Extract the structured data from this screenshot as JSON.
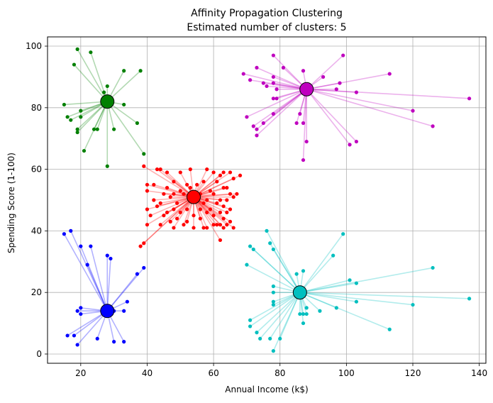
{
  "chart_data": {
    "type": "scatter",
    "title": "Affinity Propagation Clustering",
    "subtitle": "Estimated number of clusters: 5",
    "xlabel": "Annual Income (k$)",
    "ylabel": "Spending Score (1-100)",
    "xlim": [
      10,
      142
    ],
    "ylim": [
      -3,
      103
    ],
    "xticks": [
      20,
      40,
      60,
      80,
      100,
      120,
      140
    ],
    "yticks": [
      0,
      20,
      40,
      60,
      80,
      100
    ],
    "grid": true,
    "clusters": [
      {
        "name": "cluster-1",
        "color": "#008000",
        "center": [
          28,
          82
        ],
        "points": [
          [
            19,
            99
          ],
          [
            23,
            98
          ],
          [
            18,
            94
          ],
          [
            33,
            92
          ],
          [
            38,
            92
          ],
          [
            28,
            87
          ],
          [
            27,
            85
          ],
          [
            15,
            81
          ],
          [
            20,
            79
          ],
          [
            33,
            81
          ],
          [
            16,
            77
          ],
          [
            17,
            76
          ],
          [
            20,
            77
          ],
          [
            19,
            73
          ],
          [
            24,
            73
          ],
          [
            25,
            73
          ],
          [
            30,
            73
          ],
          [
            37,
            75
          ],
          [
            19,
            72
          ],
          [
            39,
            65
          ],
          [
            21,
            66
          ],
          [
            28,
            61
          ]
        ]
      },
      {
        "name": "cluster-2",
        "color": "#bf00bf",
        "center": [
          88,
          86
        ],
        "points": [
          [
            78,
            97
          ],
          [
            99,
            97
          ],
          [
            73,
            93
          ],
          [
            81,
            93
          ],
          [
            87,
            92
          ],
          [
            69,
            91
          ],
          [
            93,
            90
          ],
          [
            113,
            91
          ],
          [
            78,
            90
          ],
          [
            71,
            89
          ],
          [
            75,
            88
          ],
          [
            76,
            87
          ],
          [
            78,
            88
          ],
          [
            98,
            88
          ],
          [
            79,
            86
          ],
          [
            97,
            86
          ],
          [
            103,
            85
          ],
          [
            78,
            83
          ],
          [
            79,
            83
          ],
          [
            137,
            83
          ],
          [
            70,
            77
          ],
          [
            75,
            75
          ],
          [
            78,
            78
          ],
          [
            86,
            78
          ],
          [
            120,
            79
          ],
          [
            72,
            74
          ],
          [
            73,
            73
          ],
          [
            85,
            75
          ],
          [
            87,
            75
          ],
          [
            126,
            74
          ],
          [
            73,
            71
          ],
          [
            88,
            69
          ],
          [
            103,
            69
          ],
          [
            101,
            68
          ],
          [
            87,
            63
          ]
        ]
      },
      {
        "name": "cluster-3",
        "color": "#ff0000",
        "center": [
          54,
          51
        ],
        "points": [
          [
            39,
            61
          ],
          [
            43,
            60
          ],
          [
            44,
            60
          ],
          [
            46,
            59
          ],
          [
            50,
            59
          ],
          [
            53,
            60
          ],
          [
            58,
            60
          ],
          [
            60,
            59
          ],
          [
            63,
            59
          ],
          [
            65,
            59
          ],
          [
            62,
            58
          ],
          [
            68,
            58
          ],
          [
            40,
            55
          ],
          [
            42,
            55
          ],
          [
            48,
            56
          ],
          [
            52,
            55
          ],
          [
            55,
            55
          ],
          [
            57,
            56
          ],
          [
            61,
            56
          ],
          [
            66,
            57
          ],
          [
            40,
            53
          ],
          [
            46,
            54
          ],
          [
            50,
            53
          ],
          [
            53,
            54
          ],
          [
            59,
            53
          ],
          [
            63,
            54
          ],
          [
            64,
            54
          ],
          [
            45,
            52
          ],
          [
            48,
            52
          ],
          [
            51,
            52
          ],
          [
            56,
            52
          ],
          [
            60,
            52
          ],
          [
            65,
            52
          ],
          [
            67,
            52
          ],
          [
            42,
            50
          ],
          [
            47,
            51
          ],
          [
            54,
            50
          ],
          [
            58,
            50
          ],
          [
            62,
            50
          ],
          [
            66,
            51
          ],
          [
            44,
            49
          ],
          [
            49,
            49
          ],
          [
            57,
            49
          ],
          [
            61,
            49
          ],
          [
            64,
            50
          ],
          [
            40,
            47
          ],
          [
            43,
            48
          ],
          [
            48,
            47
          ],
          [
            52,
            47
          ],
          [
            56,
            47
          ],
          [
            59,
            47
          ],
          [
            63,
            48
          ],
          [
            65,
            47
          ],
          [
            46,
            46
          ],
          [
            50,
            46
          ],
          [
            58,
            46
          ],
          [
            62,
            46
          ],
          [
            64,
            46
          ],
          [
            41,
            45
          ],
          [
            45,
            45
          ],
          [
            49,
            44
          ],
          [
            54,
            45
          ],
          [
            60,
            45
          ],
          [
            47,
            43
          ],
          [
            52,
            43
          ],
          [
            56,
            44
          ],
          [
            63,
            44
          ],
          [
            65,
            43
          ],
          [
            44,
            42
          ],
          [
            51,
            42
          ],
          [
            60,
            42
          ],
          [
            61,
            42
          ],
          [
            62,
            42
          ],
          [
            64,
            42
          ],
          [
            40,
            42
          ],
          [
            48,
            41
          ],
          [
            54,
            41
          ],
          [
            57,
            41
          ],
          [
            58,
            41
          ],
          [
            63,
            41
          ],
          [
            66,
            41
          ],
          [
            38,
            35
          ],
          [
            39,
            36
          ],
          [
            62,
            37
          ]
        ]
      },
      {
        "name": "cluster-4",
        "color": "#0000ff",
        "center": [
          28,
          14
        ],
        "points": [
          [
            15,
            39
          ],
          [
            17,
            40
          ],
          [
            20,
            35
          ],
          [
            23,
            35
          ],
          [
            22,
            29
          ],
          [
            28,
            32
          ],
          [
            29,
            31
          ],
          [
            39,
            28
          ],
          [
            37,
            26
          ],
          [
            34,
            17
          ],
          [
            19,
            14
          ],
          [
            20,
            15
          ],
          [
            20,
            13
          ],
          [
            30,
            14
          ],
          [
            33,
            14
          ],
          [
            16,
            6
          ],
          [
            18,
            6
          ],
          [
            25,
            5
          ],
          [
            19,
            3
          ],
          [
            30,
            4
          ],
          [
            33,
            4
          ]
        ]
      },
      {
        "name": "cluster-5",
        "color": "#00bfbf",
        "center": [
          86,
          20
        ],
        "points": [
          [
            76,
            40
          ],
          [
            77,
            36
          ],
          [
            71,
            35
          ],
          [
            72,
            34
          ],
          [
            78,
            34
          ],
          [
            96,
            32
          ],
          [
            99,
            39
          ],
          [
            70,
            29
          ],
          [
            87,
            27
          ],
          [
            85,
            26
          ],
          [
            126,
            28
          ],
          [
            101,
            24
          ],
          [
            103,
            23
          ],
          [
            78,
            22
          ],
          [
            78,
            20
          ],
          [
            78,
            17
          ],
          [
            78,
            16
          ],
          [
            88,
            15
          ],
          [
            87,
            13
          ],
          [
            86,
            13
          ],
          [
            88,
            13
          ],
          [
            92,
            14
          ],
          [
            97,
            15
          ],
          [
            103,
            17
          ],
          [
            120,
            16
          ],
          [
            137,
            18
          ],
          [
            113,
            8
          ],
          [
            71,
            11
          ],
          [
            71,
            9
          ],
          [
            73,
            7
          ],
          [
            74,
            5
          ],
          [
            77,
            5
          ],
          [
            80,
            5
          ],
          [
            87,
            10
          ],
          [
            78,
            1
          ]
        ]
      }
    ]
  }
}
